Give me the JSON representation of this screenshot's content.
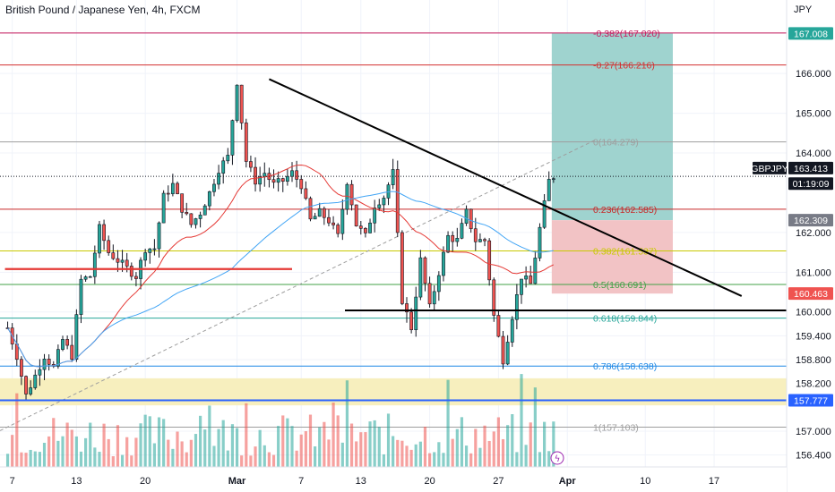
{
  "header": {
    "symbol_description": "British Pound / Japanese Yen, 4h, FXCM",
    "currency": "JPY"
  },
  "chart_data": {
    "type": "candlestick",
    "symbol": "GBPJPY",
    "timeframe": "4h",
    "source": "FXCM",
    "ylim": [
      156.1,
      167.85
    ],
    "y_ticks": [
      "166.000",
      "165.000",
      "164.000",
      "162.000",
      "161.000",
      "160.000",
      "159.400",
      "158.800",
      "158.200",
      "157.000",
      "156.400"
    ],
    "x_ticks": [
      {
        "label": "7",
        "bar": 1
      },
      {
        "label": "13",
        "bar": 15
      },
      {
        "label": "20",
        "bar": 30
      },
      {
        "label": "Mar",
        "bar": 50
      },
      {
        "label": "7",
        "bar": 64
      },
      {
        "label": "13",
        "bar": 77
      },
      {
        "label": "20",
        "bar": 92
      },
      {
        "label": "27",
        "bar": 107
      },
      {
        "label": "Apr",
        "bar": 122
      },
      {
        "label": "10",
        "bar": 139
      },
      {
        "label": "17",
        "bar": 154
      }
    ],
    "bar_count": 120,
    "projection_bars": 46,
    "price_key_points": [
      [
        0,
        159.6
      ],
      [
        2,
        158.9
      ],
      [
        4,
        157.9
      ],
      [
        6,
        158.4
      ],
      [
        8,
        158.9
      ],
      [
        10,
        158.6
      ],
      [
        12,
        159.3
      ],
      [
        14,
        158.9
      ],
      [
        16,
        160.8
      ],
      [
        18,
        160.9
      ],
      [
        20,
        162.1
      ],
      [
        22,
        161.5
      ],
      [
        24,
        161.3
      ],
      [
        26,
        161.1
      ],
      [
        28,
        160.9
      ],
      [
        30,
        161.6
      ],
      [
        32,
        161.6
      ],
      [
        34,
        162.9
      ],
      [
        36,
        163.2
      ],
      [
        38,
        162.6
      ],
      [
        40,
        162.2
      ],
      [
        42,
        162.5
      ],
      [
        44,
        163.0
      ],
      [
        46,
        163.6
      ],
      [
        48,
        163.9
      ],
      [
        50,
        165.8
      ],
      [
        52,
        163.8
      ],
      [
        54,
        163.3
      ],
      [
        56,
        163.5
      ],
      [
        58,
        163.2
      ],
      [
        60,
        163.3
      ],
      [
        62,
        163.5
      ],
      [
        64,
        163.2
      ],
      [
        66,
        162.3
      ],
      [
        68,
        162.5
      ],
      [
        70,
        162.3
      ],
      [
        72,
        161.9
      ],
      [
        74,
        163.3
      ],
      [
        76,
        162.2
      ],
      [
        78,
        161.9
      ],
      [
        80,
        162.7
      ],
      [
        82,
        162.9
      ],
      [
        84,
        163.5
      ],
      [
        86,
        160.3
      ],
      [
        88,
        159.6
      ],
      [
        90,
        161.3
      ],
      [
        92,
        160.1
      ],
      [
        94,
        161.0
      ],
      [
        96,
        161.9
      ],
      [
        98,
        161.8
      ],
      [
        100,
        162.5
      ],
      [
        102,
        161.8
      ],
      [
        104,
        161.8
      ],
      [
        106,
        159.9
      ],
      [
        108,
        158.8
      ],
      [
        110,
        159.9
      ],
      [
        112,
        160.9
      ],
      [
        114,
        160.7
      ],
      [
        116,
        162.1
      ],
      [
        118,
        163.3
      ],
      [
        119,
        163.41
      ]
    ],
    "fib_levels": [
      {
        "ratio": "-0.382",
        "price": 167.02,
        "label": "-0.382(167.020)",
        "color": "#c2185b"
      },
      {
        "ratio": "-0.27",
        "price": 166.216,
        "label": "-0.27(166.216)",
        "color": "#d32f2f"
      },
      {
        "ratio": "0",
        "price": 164.279,
        "label": "0(164.279)",
        "color": "#9e9e9e"
      },
      {
        "ratio": "0.236",
        "price": 162.585,
        "label": "0.236(162.585)",
        "color": "#c62828"
      },
      {
        "ratio": "0.382",
        "price": 161.537,
        "label": "0.382(161.537)",
        "color": "#c8c800"
      },
      {
        "ratio": "0.5",
        "price": 160.691,
        "label": "0.5(160.691)",
        "color": "#43a047"
      },
      {
        "ratio": "0.618",
        "price": 159.844,
        "label": "0.618(159.844)",
        "color": "#26a69a"
      },
      {
        "ratio": "0.786",
        "price": 158.638,
        "label": "0.786(158.638)",
        "color": "#1e88e5"
      },
      {
        "ratio": "1",
        "price": 157.103,
        "label": "1(157.103)",
        "color": "#9e9e9e"
      }
    ],
    "support_zone": [
      157.65,
      158.33
    ],
    "support_line": 157.777,
    "horizontal_support": 160.04,
    "red_segment": {
      "price": 161.08,
      "bar_start": 0,
      "bar_end": 62
    },
    "trendline": {
      "from": {
        "bar": 57,
        "price": 165.86
      },
      "to": {
        "bar": 160,
        "price": 160.4
      }
    },
    "position": {
      "entry": 162.309,
      "target": 167.008,
      "stop": 160.463,
      "bar_start": 119,
      "bar_end": 145
    },
    "price_labels": [
      {
        "text": "167.008",
        "price": 167.008,
        "bg": "#26a69a",
        "fg": "#ffffff"
      },
      {
        "text": "GBPJPY",
        "price": 163.62,
        "bg": "#131722",
        "fg": "#ffffff",
        "offset": "left"
      },
      {
        "text": "163.413",
        "price": 163.62,
        "bg": "#131722",
        "fg": "#ffffff"
      },
      {
        "text": "01:19:09",
        "price": 163.23,
        "bg": "#131722",
        "fg": "#ffffff"
      },
      {
        "text": "162.309",
        "price": 162.309,
        "bg": "#787b86",
        "fg": "#ffffff"
      },
      {
        "text": "160.463",
        "price": 160.463,
        "bg": "#ef5350",
        "fg": "#ffffff"
      },
      {
        "text": "157.777",
        "price": 157.777,
        "bg": "#2962ff",
        "fg": "#ffffff"
      }
    ],
    "colors": {
      "up": "#26a69a",
      "down": "#ef5350",
      "wick": "#131722",
      "ma_fast": "#e53935",
      "ma_slow": "#42a5f5",
      "trendline": "#000000",
      "target_zone": "#9fd3cf",
      "stop_zone": "#f2c3c5",
      "support_zone": "#f7efbe",
      "grid": "#f0f3fa",
      "axis_text": "#131722"
    }
  }
}
